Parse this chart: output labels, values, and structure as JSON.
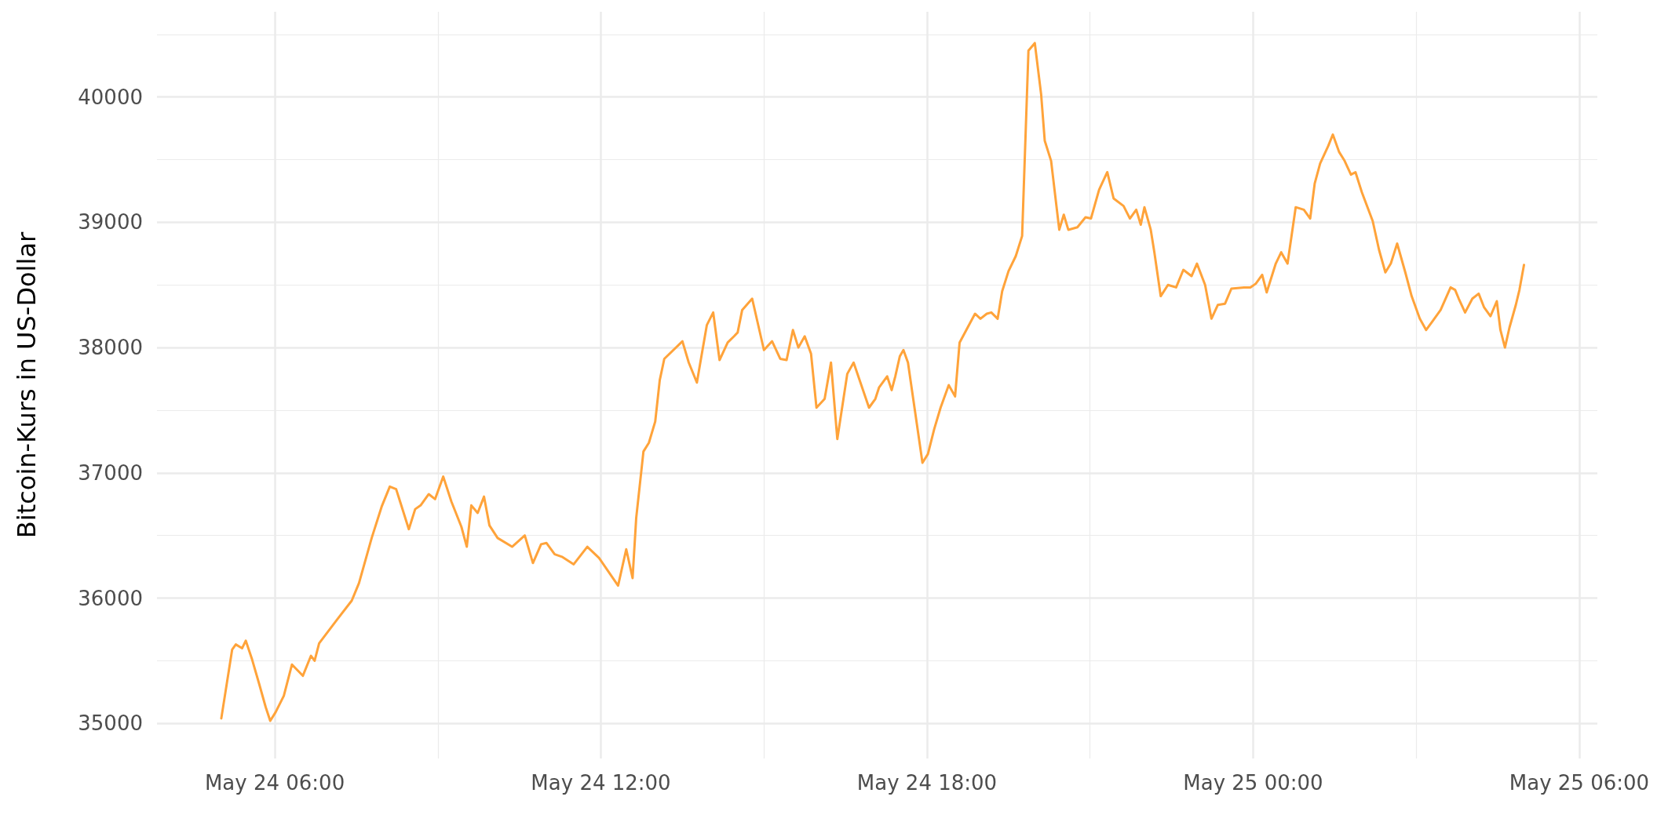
{
  "chart_data": {
    "type": "line",
    "ylabel": "Bitcoin-Kurs in US-Dollar",
    "x": [
      "--05-24T05:01",
      "--05-24T05:13",
      "--05-24T05:17",
      "--05-24T05:24",
      "--05-24T05:28",
      "--05-24T05:35",
      "--05-24T05:43",
      "--05-24T05:50",
      "--05-24T05:55",
      "--05-24T06:01",
      "--05-24T06:10",
      "--05-24T06:19",
      "--05-24T06:31",
      "--05-24T06:40",
      "--05-24T06:44",
      "--05-24T06:49",
      "--05-24T07:09",
      "--05-24T07:25",
      "--05-24T07:33",
      "--05-24T07:47",
      "--05-24T07:58",
      "--05-24T08:07",
      "--05-24T08:14",
      "--05-24T08:28",
      "--05-24T08:35",
      "--05-24T08:41",
      "--05-24T08:50",
      "--05-24T08:57",
      "--05-24T09:06",
      "--05-24T09:15",
      "--05-24T09:26",
      "--05-24T09:32",
      "--05-24T09:37",
      "--05-24T09:44",
      "--05-24T09:51",
      "--05-24T09:57",
      "--05-24T10:06",
      "--05-24T10:22",
      "--05-24T10:36",
      "--05-24T10:45",
      "--05-24T10:54",
      "--05-24T11:00",
      "--05-24T11:09",
      "--05-24T11:17",
      "--05-24T11:30",
      "--05-24T11:45",
      "--05-24T11:58",
      "--05-24T12:19",
      "--05-24T12:28",
      "--05-24T12:35",
      "--05-24T12:39",
      "--05-24T12:47",
      "--05-24T12:53",
      "--05-24T13:00",
      "--05-24T13:05",
      "--05-24T13:10",
      "--05-24T13:30",
      "--05-24T13:37",
      "--05-24T13:46",
      "--05-24T13:50",
      "--05-24T13:57",
      "--05-24T14:04",
      "--05-24T14:11",
      "--05-24T14:20",
      "--05-24T14:27",
      "--05-24T14:31",
      "--05-24T14:36",
      "--05-24T14:47",
      "--05-24T15:00",
      "--05-24T15:09",
      "--05-24T15:18",
      "--05-24T15:25",
      "--05-24T15:32",
      "--05-24T15:38",
      "--05-24T15:45",
      "--05-24T15:52",
      "--05-24T15:58",
      "--05-24T16:07",
      "--05-24T16:14",
      "--05-24T16:21",
      "--05-24T16:32",
      "--05-24T16:39",
      "--05-24T16:56",
      "--05-24T17:03",
      "--05-24T17:07",
      "--05-24T17:16",
      "--05-24T17:21",
      "--05-24T17:25",
      "--05-24T17:30",
      "--05-24T17:34",
      "--05-24T17:39",
      "--05-24T17:55",
      "--05-24T18:01",
      "--05-24T18:08",
      "--05-24T18:15",
      "--05-24T18:24",
      "--05-24T18:31",
      "--05-24T18:36",
      "--05-24T18:53",
      "--05-24T18:59",
      "--05-24T19:06",
      "--05-24T19:11",
      "--05-24T19:18",
      "--05-24T19:23",
      "--05-24T19:30",
      "--05-24T19:38",
      "--05-24T19:45",
      "--05-24T19:52",
      "--05-24T19:59",
      "--05-24T20:06",
      "--05-24T20:10",
      "--05-24T20:17",
      "--05-24T20:26",
      "--05-24T20:31",
      "--05-24T20:36",
      "--05-24T20:46",
      "--05-24T20:55",
      "--05-24T21:01",
      "--05-24T21:10",
      "--05-24T21:19",
      "--05-24T21:26",
      "--05-24T21:37",
      "--05-24T21:44",
      "--05-24T21:51",
      "--05-24T21:56",
      "--05-24T22:00",
      "--05-24T22:07",
      "--05-24T22:11",
      "--05-24T22:18",
      "--05-24T22:26",
      "--05-24T22:35",
      "--05-24T22:43",
      "--05-24T22:52",
      "--05-24T22:58",
      "--05-24T23:07",
      "--05-24T23:14",
      "--05-24T23:21",
      "--05-24T23:29",
      "--05-24T23:36",
      "--05-24T23:50",
      "--05-24T23:57",
      "--05-25T00:03",
      "--05-25T00:10",
      "--05-25T00:15",
      "--05-25T00:25",
      "--05-25T00:31",
      "--05-25T00:38",
      "--05-25T00:47",
      "--05-25T00:56",
      "--05-25T01:03",
      "--05-25T01:08",
      "--05-25T01:14",
      "--05-25T01:23",
      "--05-25T01:28",
      "--05-25T01:35",
      "--05-25T01:41",
      "--05-25T01:48",
      "--05-25T01:53",
      "--05-25T02:00",
      "--05-25T02:12",
      "--05-25T02:19",
      "--05-25T02:26",
      "--05-25T02:32",
      "--05-25T02:39",
      "--05-25T02:48",
      "--05-25T02:55",
      "--05-25T03:04",
      "--05-25T03:11",
      "--05-25T03:18",
      "--05-25T03:27",
      "--05-25T03:38",
      "--05-25T03:43",
      "--05-25T03:47",
      "--05-25T03:54",
      "--05-25T04:02",
      "--05-25T04:09",
      "--05-25T04:15",
      "--05-25T04:22",
      "--05-25T04:29",
      "--05-25T04:33",
      "--05-25T04:38",
      "--05-25T04:43",
      "--05-25T04:50",
      "--05-25T04:54",
      "--05-25T04:59"
    ],
    "series": [
      {
        "color": "#ffa33a",
        "values": [
          35040,
          35590,
          35630,
          35600,
          35660,
          35510,
          35310,
          35130,
          35020,
          35090,
          35220,
          35470,
          35380,
          35540,
          35500,
          35640,
          35830,
          35980,
          36120,
          36480,
          36730,
          36890,
          36870,
          36550,
          36710,
          36740,
          36830,
          36790,
          36970,
          36770,
          36570,
          36410,
          36740,
          36680,
          36810,
          36580,
          36480,
          36410,
          36500,
          36280,
          36430,
          36440,
          36350,
          36330,
          36270,
          36410,
          36320,
          36100,
          36390,
          36160,
          36640,
          37170,
          37240,
          37410,
          37740,
          37910,
          38050,
          37880,
          37720,
          37890,
          38180,
          38280,
          37900,
          38040,
          38090,
          38120,
          38300,
          38390,
          37980,
          38050,
          37910,
          37900,
          38140,
          38000,
          38090,
          37950,
          37520,
          37590,
          37880,
          37270,
          37790,
          37880,
          37520,
          37590,
          37680,
          37770,
          37660,
          37770,
          37930,
          37980,
          37880,
          37080,
          37150,
          37350,
          37520,
          37700,
          37610,
          38040,
          38270,
          38230,
          38270,
          38280,
          38230,
          38450,
          38610,
          38730,
          38890,
          40370,
          40430,
          40020,
          39650,
          39490,
          38940,
          39060,
          38940,
          38960,
          39040,
          39030,
          39260,
          39400,
          39190,
          39130,
          39030,
          39100,
          38980,
          39120,
          38940,
          38760,
          38410,
          38500,
          38480,
          38620,
          38570,
          38670,
          38500,
          38230,
          38340,
          38350,
          38470,
          38480,
          38480,
          38510,
          38580,
          38440,
          38670,
          38760,
          38670,
          39120,
          39100,
          39030,
          39310,
          39470,
          39610,
          39700,
          39560,
          39490,
          39380,
          39400,
          39240,
          39010,
          38780,
          38600,
          38670,
          38830,
          38600,
          38410,
          38230,
          38140,
          38210,
          38300,
          38480,
          38460,
          38390,
          38280,
          38390,
          38430,
          38320,
          38250,
          38370,
          38140,
          38000,
          38160,
          38340,
          38460,
          38660
        ]
      }
    ],
    "xlim": [
      "--05-24T03:50",
      "--05-25T06:20"
    ],
    "xticks": [
      {
        "value": "--05-24T06:00",
        "label": "May 24 06:00"
      },
      {
        "value": "--05-24T12:00",
        "label": "May 24 12:00"
      },
      {
        "value": "--05-24T18:00",
        "label": "May 24 18:00"
      },
      {
        "value": "--05-25T00:00",
        "label": "May 25 00:00"
      },
      {
        "value": "--05-25T06:00",
        "label": "May 25 06:00"
      }
    ],
    "ylim": [
      34720,
      40680
    ],
    "yticks": [
      35000,
      36000,
      37000,
      38000,
      39000,
      40000
    ],
    "grid": true,
    "marker": "none",
    "line_style": "solid"
  }
}
